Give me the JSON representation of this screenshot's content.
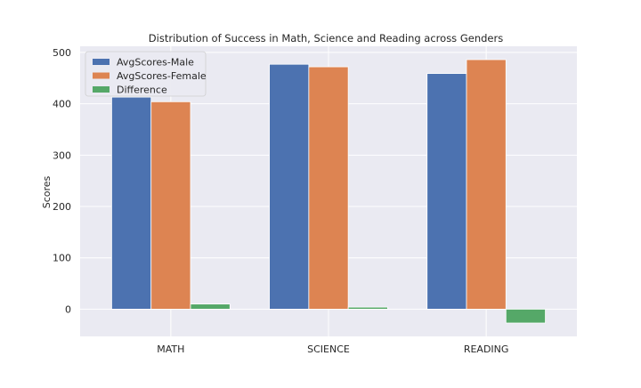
{
  "chart_data": {
    "type": "bar",
    "title": "Distribution of Success in Math, Science and Reading across Genders",
    "xlabel": "",
    "ylabel": "Scores",
    "categories": [
      "MATH",
      "SCIENCE",
      "READING"
    ],
    "series": [
      {
        "name": "AvgScores-Male",
        "values": [
          413,
          477,
          459
        ],
        "color": "#4c72b0"
      },
      {
        "name": "AvgScores-Female",
        "values": [
          404,
          472,
          486
        ],
        "color": "#dd8452"
      },
      {
        "name": "Difference",
        "values": [
          10,
          4,
          -27
        ],
        "color": "#55a868"
      }
    ],
    "ylim": [
      -53,
      512
    ],
    "yticks": [
      0,
      100,
      200,
      300,
      400,
      500
    ],
    "grid": true,
    "legend_position": "top-left",
    "background_color": "#eaeaf2",
    "grid_color": "#ffffff"
  }
}
